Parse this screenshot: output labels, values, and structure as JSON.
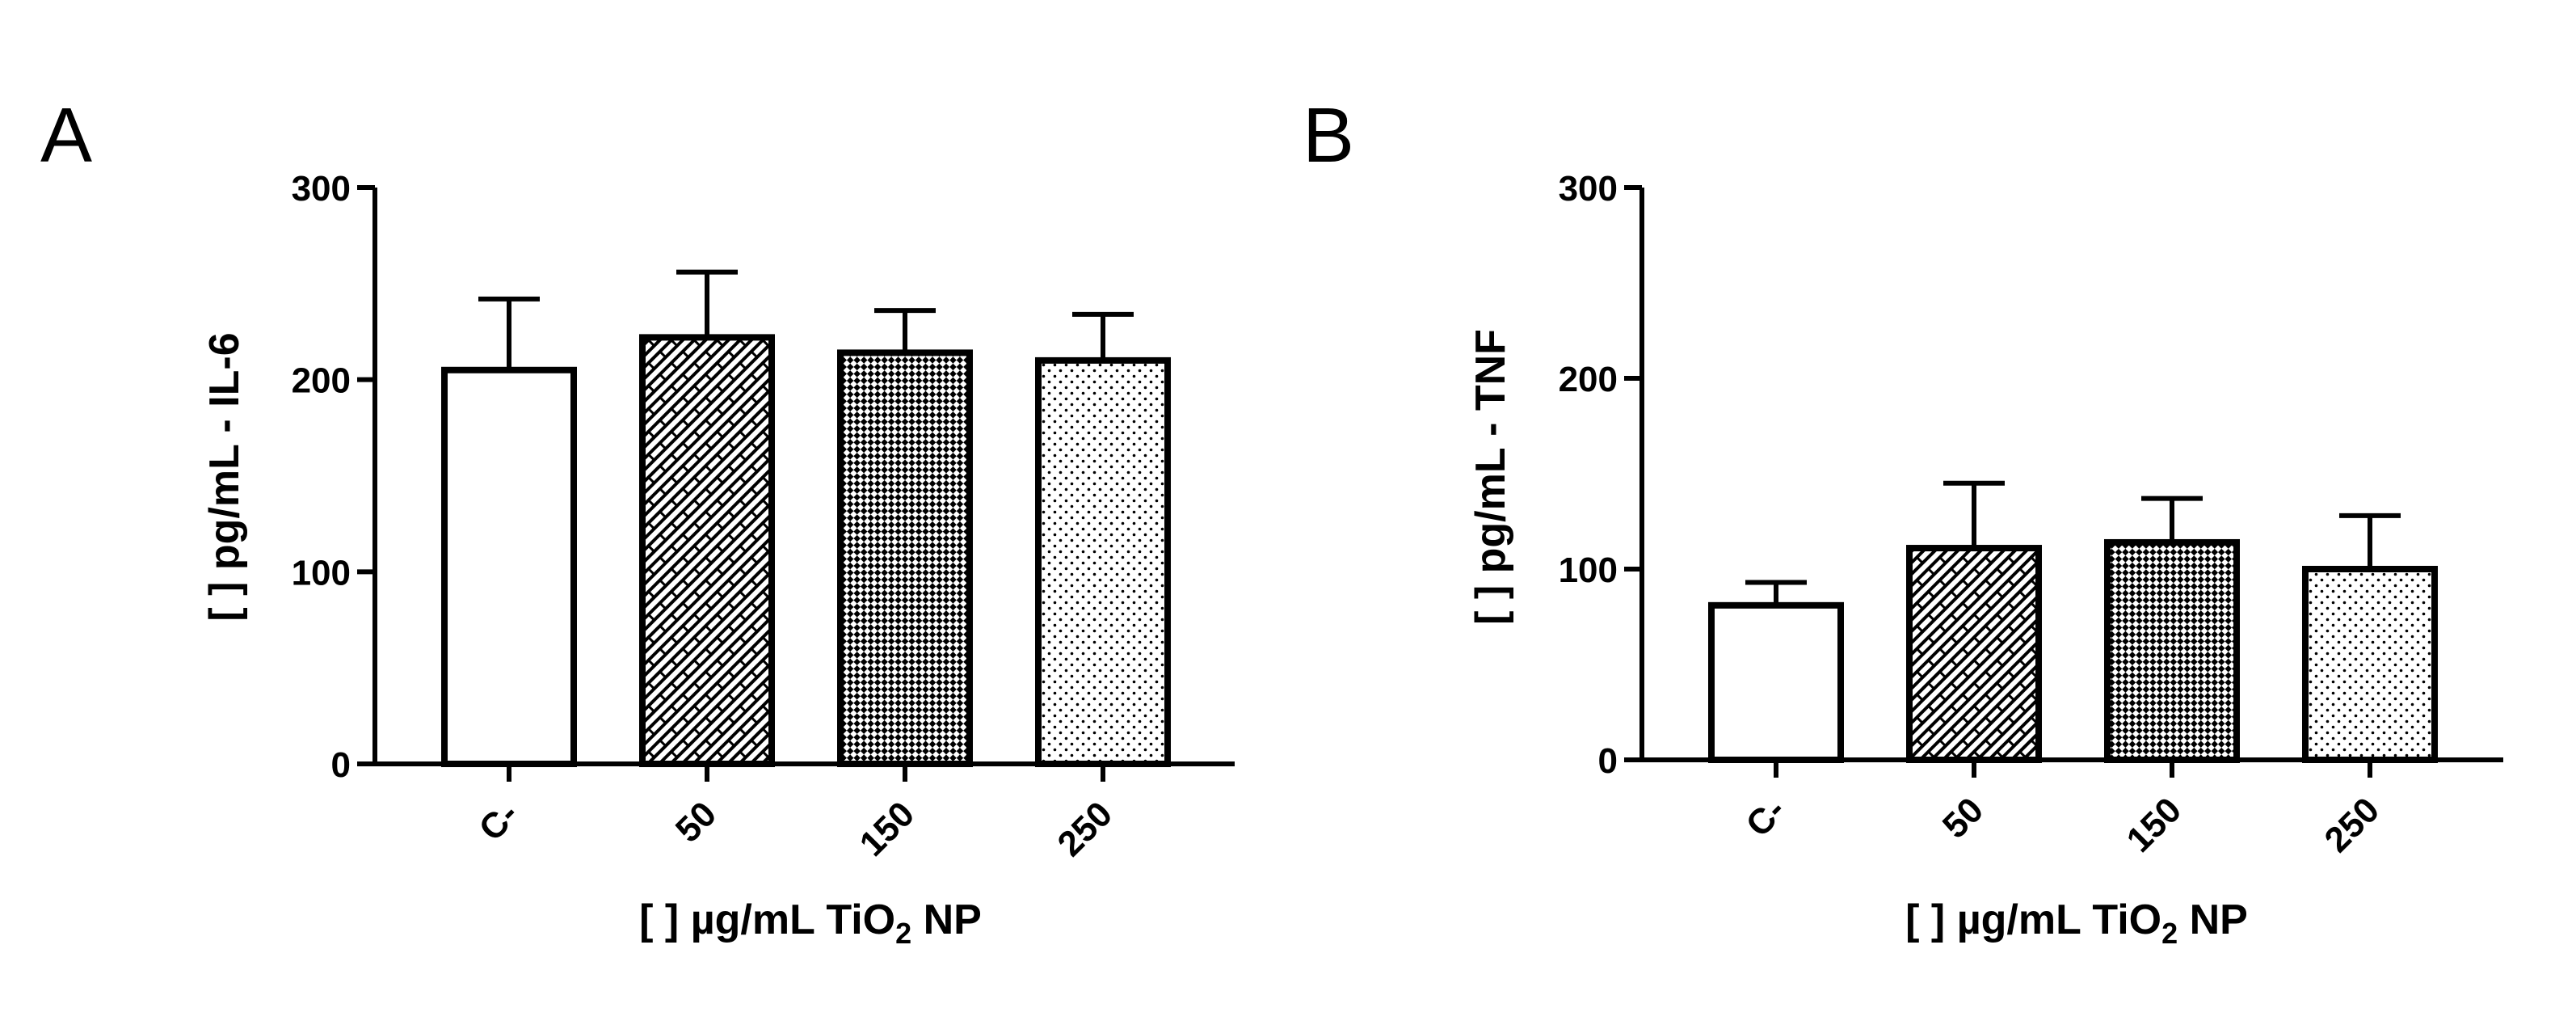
{
  "colors": {
    "bar_fill": "#ffffff",
    "stroke": "#000000"
  },
  "chart_data": [
    {
      "panel_label": "A",
      "type": "bar",
      "categories": [
        "C-",
        "50",
        "150",
        "250"
      ],
      "values": [
        205,
        222,
        214,
        210
      ],
      "errors": [
        37,
        34,
        22,
        24
      ],
      "patterns": [
        "none",
        "diagonal-brick",
        "checker",
        "dots"
      ],
      "yticks": [
        0,
        100,
        200,
        300
      ],
      "ylim": [
        0,
        300
      ],
      "ylabel": "[ ] pg/mL - IL-6",
      "xlabel_main": "[ ] µg/mL TiO",
      "xlabel_sub": "2",
      "xlabel_tail": " NP",
      "grid": false,
      "legend": "none"
    },
    {
      "panel_label": "B",
      "type": "bar",
      "categories": [
        "C-",
        "50",
        "150",
        "250"
      ],
      "values": [
        81,
        111,
        114,
        100
      ],
      "errors": [
        12,
        34,
        23,
        28
      ],
      "patterns": [
        "none",
        "diagonal-brick",
        "checker",
        "dots"
      ],
      "yticks": [
        0,
        100,
        200,
        300
      ],
      "ylim": [
        0,
        300
      ],
      "ylabel": "[ ] pg/mL - TNF",
      "xlabel_main": "[ ] µg/mL TiO",
      "xlabel_sub": "2",
      "xlabel_tail": " NP",
      "grid": false,
      "legend": "none"
    }
  ]
}
